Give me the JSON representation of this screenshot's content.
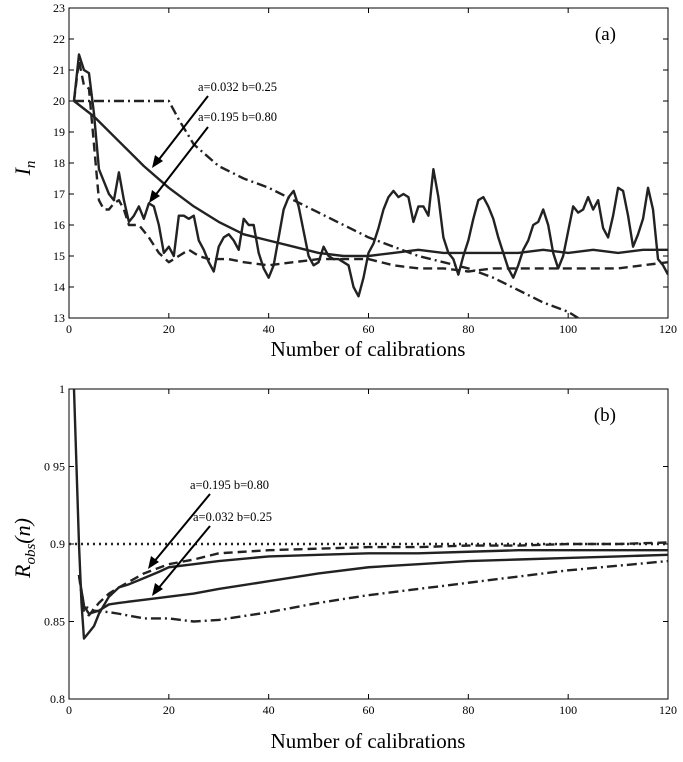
{
  "chart_data": [
    {
      "type": "line",
      "panel_label": "(a)",
      "xlabel": "Number of calibrations",
      "ylabel": "I_n",
      "ylabel_main": "I",
      "ylabel_sub": "n",
      "xlim": [
        0,
        120
      ],
      "ylim": [
        13,
        23
      ],
      "xticks": [
        0,
        20,
        40,
        60,
        80,
        100,
        120
      ],
      "yticks": [
        13,
        14,
        15,
        16,
        17,
        18,
        19,
        20,
        21,
        22,
        23
      ],
      "grid": false,
      "series": [
        {
          "style": "solid-oscillating",
          "x": [
            1,
            2,
            3,
            4,
            5,
            6,
            7,
            8,
            9,
            10,
            11,
            12,
            13,
            14,
            15,
            16,
            17,
            18,
            19,
            20,
            21,
            22,
            23,
            24,
            25,
            26,
            27,
            28,
            29,
            30,
            31,
            32,
            33,
            34,
            35,
            36,
            37,
            38,
            39,
            40,
            41,
            42,
            43,
            44,
            45,
            46,
            47,
            48,
            49,
            50,
            51,
            52,
            53,
            54,
            55,
            56,
            57,
            58,
            59,
            60,
            61,
            62,
            63,
            64,
            65,
            66,
            67,
            68,
            69,
            70,
            71,
            72,
            73,
            74,
            75,
            76,
            77,
            78,
            79,
            80,
            81,
            82,
            83,
            84,
            85,
            86,
            87,
            88,
            89,
            90,
            91,
            92,
            93,
            94,
            95,
            96,
            97,
            98,
            99,
            100,
            101,
            102,
            103,
            104,
            105,
            106,
            107,
            108,
            109,
            110,
            111,
            112,
            113,
            114,
            115,
            116,
            117,
            118,
            119,
            120
          ],
          "y": [
            20.0,
            21.5,
            21.0,
            20.9,
            19.6,
            17.8,
            17.4,
            17.0,
            16.8,
            17.7,
            16.8,
            16.1,
            16.3,
            16.6,
            16.2,
            16.7,
            16.6,
            16.0,
            15.1,
            15.3,
            15.0,
            16.3,
            16.3,
            16.2,
            16.3,
            15.5,
            15.2,
            14.8,
            14.5,
            15.3,
            15.6,
            15.7,
            15.5,
            15.2,
            16.2,
            16.0,
            16.0,
            15.1,
            14.6,
            14.3,
            14.7,
            15.6,
            16.5,
            16.9,
            17.1,
            16.6,
            15.8,
            15.0,
            14.7,
            14.8,
            15.3,
            15.0,
            14.9,
            14.9,
            14.8,
            14.7,
            14.0,
            13.7,
            14.3,
            15.1,
            15.4,
            15.9,
            16.5,
            16.9,
            17.1,
            16.9,
            17.0,
            16.9,
            16.1,
            16.6,
            16.6,
            16.3,
            17.8,
            16.9,
            15.6,
            15.1,
            14.9,
            14.4,
            15.0,
            15.5,
            16.2,
            16.8,
            16.9,
            16.6,
            16.2,
            15.6,
            15.1,
            14.6,
            14.3,
            14.7,
            15.2,
            15.5,
            16.0,
            16.1,
            16.5,
            16.0,
            15.1,
            14.6,
            15.0,
            15.8,
            16.6,
            16.4,
            16.5,
            16.9,
            16.5,
            16.8,
            15.9,
            15.6,
            16.3,
            17.2,
            17.1,
            16.3,
            15.3,
            15.7,
            16.2,
            17.2,
            16.5,
            14.9,
            14.7,
            14.4
          ]
        },
        {
          "style": "solid-smooth",
          "x": [
            1,
            5,
            10,
            15,
            20,
            25,
            30,
            35,
            40,
            45,
            50,
            55,
            60,
            65,
            70,
            75,
            80,
            85,
            90,
            95,
            100,
            105,
            110,
            115,
            120
          ],
          "y": [
            20.0,
            19.5,
            18.7,
            17.9,
            17.2,
            16.6,
            16.1,
            15.7,
            15.5,
            15.3,
            15.1,
            15.0,
            15.0,
            15.1,
            15.2,
            15.1,
            15.1,
            15.1,
            15.1,
            15.2,
            15.1,
            15.2,
            15.1,
            15.2,
            15.2
          ]
        },
        {
          "style": "dashed",
          "x": [
            1,
            2,
            3,
            4,
            5,
            6,
            7,
            8,
            9,
            10,
            11,
            12,
            14,
            16,
            18,
            20,
            22,
            24,
            26,
            28,
            30,
            32,
            35,
            40,
            45,
            50,
            55,
            60,
            65,
            70,
            75,
            80,
            85,
            90,
            95,
            100,
            105,
            110,
            115,
            120
          ],
          "y": [
            20.0,
            21.3,
            20.5,
            20.4,
            18.6,
            16.8,
            16.5,
            16.5,
            16.7,
            16.8,
            16.5,
            16.0,
            16.0,
            15.6,
            15.1,
            14.8,
            15.0,
            15.2,
            15.0,
            14.9,
            14.9,
            14.9,
            14.8,
            14.7,
            14.8,
            14.9,
            14.9,
            14.9,
            14.7,
            14.6,
            14.6,
            14.5,
            14.6,
            14.6,
            14.6,
            14.6,
            14.6,
            14.6,
            14.7,
            14.8
          ]
        },
        {
          "style": "dash-dot",
          "x": [
            1,
            5,
            10,
            15,
            20,
            22,
            25,
            30,
            35,
            40,
            45,
            50,
            55,
            60,
            65,
            70,
            75,
            80,
            85,
            90,
            95,
            100,
            102
          ],
          "y": [
            20.0,
            20.0,
            20.0,
            20.0,
            20.0,
            19.4,
            18.6,
            17.9,
            17.5,
            17.2,
            16.8,
            16.4,
            16.0,
            15.6,
            15.3,
            15.0,
            14.8,
            14.6,
            14.3,
            13.9,
            13.5,
            13.2,
            13.0
          ]
        }
      ],
      "annotations": [
        {
          "text": "a=0.032 b=0.25"
        },
        {
          "text": "a=0.195 b=0.80"
        }
      ]
    },
    {
      "type": "line",
      "panel_label": "(b)",
      "xlabel": "Number of calibrations",
      "ylabel": "R_obs(n)",
      "ylabel_main": "R",
      "ylabel_sub": "obs",
      "ylabel_paren": "(n)",
      "xlim": [
        0,
        120
      ],
      "ylim": [
        0.8,
        1.0
      ],
      "xticks": [
        0,
        20,
        40,
        60,
        80,
        100,
        120
      ],
      "yticks": [
        0.8,
        0.85,
        0.9,
        0.95,
        1.0
      ],
      "ytick_labels": [
        "0.8",
        "0.85",
        "0.9",
        "0 95",
        "1"
      ],
      "grid": false,
      "series": [
        {
          "style": "dotted",
          "x": [
            0,
            120
          ],
          "y": [
            0.9,
            0.9
          ]
        },
        {
          "style": "solid",
          "x": [
            1,
            1.5,
            2,
            2.5,
            3,
            4,
            5,
            6,
            8,
            10,
            12,
            15,
            18,
            20,
            25,
            30,
            40,
            50,
            60,
            70,
            80,
            90,
            100,
            110,
            120
          ],
          "y": [
            1.0,
            0.95,
            0.9,
            0.862,
            0.839,
            0.843,
            0.847,
            0.855,
            0.866,
            0.872,
            0.874,
            0.878,
            0.882,
            0.885,
            0.887,
            0.889,
            0.892,
            0.893,
            0.894,
            0.894,
            0.895,
            0.896,
            0.896,
            0.896,
            0.896
          ]
        },
        {
          "style": "solid",
          "x": [
            2,
            3,
            4,
            6,
            8,
            10,
            15,
            20,
            25,
            30,
            40,
            50,
            60,
            70,
            80,
            90,
            100,
            110,
            120
          ],
          "y": [
            0.88,
            0.86,
            0.855,
            0.857,
            0.861,
            0.862,
            0.864,
            0.866,
            0.868,
            0.871,
            0.876,
            0.881,
            0.885,
            0.887,
            0.889,
            0.89,
            0.891,
            0.892,
            0.893
          ]
        },
        {
          "style": "dashed",
          "x": [
            2,
            3,
            4,
            6,
            8,
            10,
            15,
            20,
            25,
            30,
            40,
            50,
            60,
            70,
            80,
            90,
            100,
            110,
            120
          ],
          "y": [
            0.88,
            0.856,
            0.854,
            0.862,
            0.868,
            0.872,
            0.881,
            0.887,
            0.89,
            0.894,
            0.896,
            0.897,
            0.898,
            0.898,
            0.899,
            0.899,
            0.9,
            0.9,
            0.901
          ]
        },
        {
          "style": "dash-dot",
          "x": [
            2,
            3,
            5,
            8,
            10,
            15,
            20,
            25,
            30,
            40,
            50,
            60,
            70,
            80,
            90,
            100,
            110,
            120
          ],
          "y": [
            0.88,
            0.86,
            0.857,
            0.856,
            0.855,
            0.852,
            0.852,
            0.85,
            0.851,
            0.856,
            0.862,
            0.867,
            0.871,
            0.875,
            0.879,
            0.883,
            0.886,
            0.889
          ]
        }
      ],
      "annotations": [
        {
          "text": "a=0.195 b=0.80"
        },
        {
          "text": "a=0.032 b=0.25"
        }
      ]
    }
  ]
}
